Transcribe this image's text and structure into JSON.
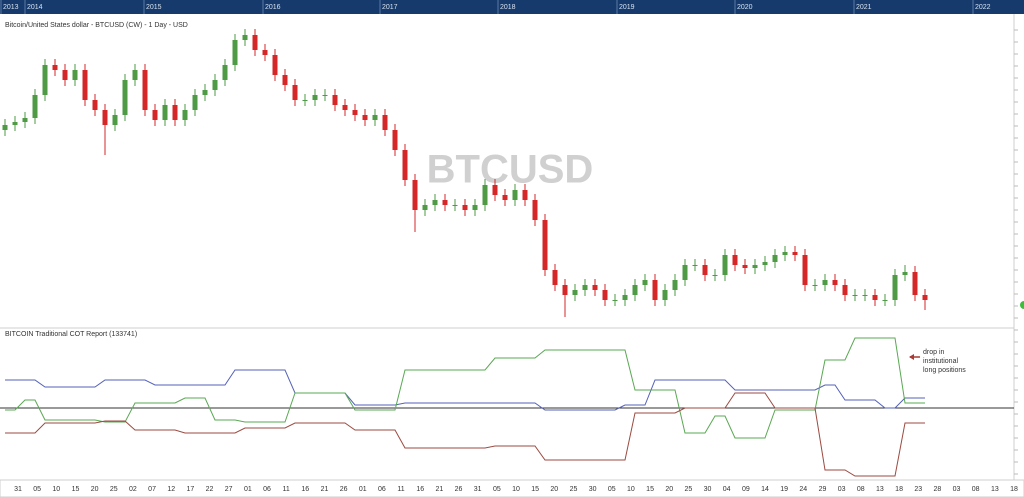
{
  "chart_data": {
    "type": "candlestick",
    "title": "Bitcoin/United States dollar - BTCUSD (CW) - 1 Day - USD",
    "watermark": "BTCUSD",
    "years": [
      "2013",
      "2014",
      "2015",
      "2016",
      "2017",
      "2018",
      "2019",
      "2020",
      "2021",
      "2022"
    ],
    "date_labels": [
      "31",
      "05",
      "10",
      "15",
      "20",
      "25",
      "02",
      "07",
      "12",
      "17",
      "22",
      "27",
      "01",
      "06",
      "11",
      "16",
      "21",
      "26",
      "01",
      "06",
      "11",
      "16",
      "21",
      "26",
      "31",
      "05",
      "10",
      "15",
      "20",
      "25",
      "30",
      "05",
      "10",
      "15",
      "20",
      "25",
      "30",
      "04",
      "09",
      "14",
      "19",
      "24",
      "29",
      "03",
      "08",
      "13",
      "18",
      "23",
      "28",
      "03",
      "08",
      "13",
      "18"
    ],
    "ylim": [
      0,
      303
    ],
    "up_color": "#4e9a45",
    "down_color": "#d62728",
    "open": [
      195,
      200,
      203,
      207,
      230,
      260,
      255,
      245,
      255,
      225,
      215,
      200,
      210,
      245,
      255,
      215,
      205,
      220,
      205,
      215,
      230,
      235,
      245,
      260,
      285,
      290,
      275,
      270,
      250,
      240,
      225,
      225,
      230,
      230,
      220,
      215,
      210,
      205,
      210,
      195,
      175,
      145,
      115,
      120,
      125,
      120,
      120,
      115,
      120,
      140,
      130,
      125,
      135,
      125,
      105,
      55,
      40,
      30,
      35,
      40,
      35,
      25,
      25,
      30,
      40,
      45,
      25,
      35,
      45,
      60,
      60,
      50,
      50,
      70,
      60,
      57,
      60,
      63,
      70,
      73,
      70,
      40,
      40,
      45,
      40,
      30,
      30,
      30,
      25,
      25,
      50,
      53,
      30
    ],
    "high": [
      206,
      209,
      213,
      236,
      266,
      266,
      261,
      261,
      261,
      231,
      221,
      216,
      251,
      261,
      261,
      221,
      226,
      226,
      221,
      236,
      241,
      251,
      266,
      291,
      296,
      296,
      281,
      276,
      256,
      246,
      231,
      236,
      236,
      236,
      226,
      221,
      216,
      216,
      216,
      201,
      181,
      151,
      126,
      131,
      131,
      126,
      126,
      126,
      146,
      146,
      136,
      141,
      141,
      131,
      111,
      61,
      46,
      41,
      46,
      46,
      41,
      31,
      36,
      46,
      51,
      51,
      41,
      51,
      66,
      66,
      66,
      56,
      76,
      76,
      66,
      66,
      69,
      76,
      79,
      79,
      76,
      46,
      51,
      51,
      46,
      36,
      36,
      36,
      31,
      56,
      60,
      59,
      36
    ],
    "low": [
      189,
      194,
      197,
      201,
      224,
      249,
      239,
      239,
      219,
      209,
      170,
      194,
      204,
      239,
      209,
      199,
      199,
      199,
      199,
      209,
      224,
      229,
      239,
      254,
      279,
      269,
      264,
      244,
      234,
      219,
      219,
      219,
      224,
      214,
      209,
      204,
      199,
      199,
      189,
      169,
      139,
      93,
      109,
      114,
      114,
      114,
      109,
      109,
      114,
      124,
      119,
      119,
      119,
      99,
      49,
      34,
      8,
      24,
      29,
      29,
      19,
      19,
      19,
      24,
      34,
      19,
      19,
      29,
      39,
      54,
      44,
      44,
      44,
      54,
      51,
      51,
      54,
      57,
      64,
      64,
      34,
      34,
      34,
      34,
      24,
      24,
      24,
      19,
      19,
      19,
      44,
      24,
      15
    ],
    "close": [
      200,
      203,
      207,
      230,
      260,
      255,
      245,
      255,
      225,
      215,
      200,
      210,
      245,
      255,
      215,
      205,
      220,
      205,
      215,
      230,
      235,
      245,
      260,
      285,
      290,
      275,
      270,
      250,
      240,
      225,
      225,
      230,
      230,
      220,
      215,
      210,
      205,
      210,
      195,
      175,
      145,
      115,
      120,
      125,
      120,
      120,
      115,
      120,
      140,
      130,
      125,
      135,
      125,
      105,
      55,
      40,
      30,
      35,
      40,
      35,
      25,
      25,
      30,
      40,
      45,
      25,
      35,
      45,
      60,
      60,
      50,
      50,
      70,
      60,
      57,
      60,
      63,
      70,
      73,
      70,
      40,
      40,
      45,
      40,
      30,
      30,
      30,
      25,
      25,
      50,
      53,
      30,
      25
    ],
    "indicator": {
      "title": "BITCOIN Traditional COT Report (133741)",
      "ylim": [
        -82,
        78
      ],
      "annotation": [
        "drop in",
        "institutional",
        "long positions"
      ],
      "annotation_color": "#a83a32",
      "series": [
        {
          "color": "#5561b8",
          "values": [
            28,
            28,
            28,
            28,
            21,
            21,
            21,
            21,
            21,
            21,
            28,
            28,
            28,
            28,
            28,
            23,
            23,
            23,
            23,
            23,
            23,
            23,
            23,
            38,
            38,
            38,
            38,
            38,
            38,
            15,
            15,
            15,
            15,
            15,
            15,
            3,
            3,
            3,
            3,
            3,
            5,
            5,
            5,
            5,
            5,
            5,
            5,
            5,
            5,
            5,
            5,
            5,
            5,
            5,
            -2,
            -2,
            -2,
            -2,
            -2,
            -2,
            -2,
            -2,
            3,
            3,
            3,
            28,
            28,
            28,
            28,
            28,
            28,
            28,
            28,
            18,
            18,
            18,
            18,
            18,
            18,
            18,
            18,
            18,
            23,
            23,
            8,
            8,
            8,
            8,
            0,
            0,
            10,
            10,
            10
          ]
        },
        {
          "color": "#5aa853",
          "values": [
            -2,
            -2,
            8,
            8,
            -12,
            -12,
            -12,
            -12,
            -12,
            -12,
            -14,
            -14,
            -14,
            5,
            5,
            5,
            5,
            5,
            10,
            10,
            10,
            -12,
            -12,
            -12,
            -14,
            -14,
            -14,
            -14,
            -14,
            15,
            15,
            15,
            15,
            15,
            15,
            -2,
            -2,
            -2,
            -2,
            -2,
            38,
            38,
            38,
            38,
            38,
            38,
            38,
            38,
            38,
            50,
            50,
            50,
            50,
            50,
            58,
            58,
            58,
            58,
            58,
            58,
            58,
            58,
            58,
            18,
            18,
            18,
            18,
            18,
            -25,
            -25,
            -25,
            -8,
            -8,
            -30,
            -30,
            -30,
            -30,
            -2,
            -2,
            -2,
            -2,
            -2,
            48,
            48,
            48,
            70,
            70,
            70,
            70,
            70,
            5,
            5,
            5
          ]
        },
        {
          "color": "#9c4a40",
          "values": [
            -25,
            -25,
            -25,
            -25,
            -15,
            -15,
            -15,
            -15,
            -15,
            -15,
            -13,
            -13,
            -13,
            -22,
            -22,
            -22,
            -22,
            -22,
            -25,
            -25,
            -25,
            -25,
            -25,
            -25,
            -20,
            -20,
            -20,
            -20,
            -20,
            -15,
            -15,
            -15,
            -15,
            -15,
            -15,
            -22,
            -22,
            -22,
            -22,
            -22,
            -40,
            -40,
            -40,
            -40,
            -40,
            -40,
            -40,
            -40,
            -40,
            -38,
            -38,
            -38,
            -38,
            -38,
            -52,
            -52,
            -52,
            -52,
            -52,
            -52,
            -52,
            -52,
            -52,
            -5,
            -5,
            -5,
            -5,
            -5,
            0,
            0,
            0,
            0,
            0,
            15,
            15,
            15,
            15,
            0,
            0,
            0,
            0,
            0,
            -62,
            -62,
            -62,
            -68,
            -68,
            -68,
            -68,
            -68,
            -15,
            -15,
            -15
          ]
        }
      ]
    }
  }
}
